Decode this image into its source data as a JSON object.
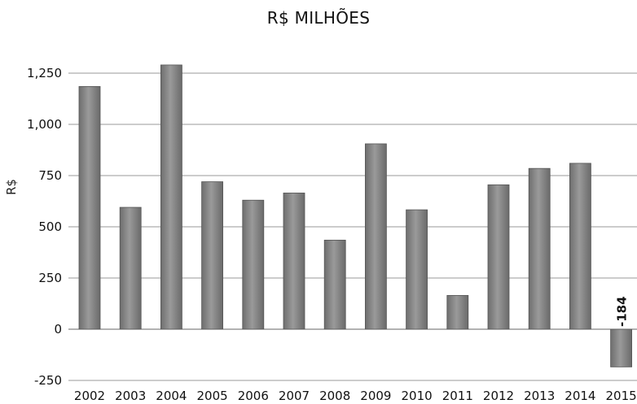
{
  "chart_data": {
    "type": "bar",
    "title": "R$ MILHÕES",
    "xlabel": "",
    "ylabel": "R$",
    "ylim": [
      -250,
      1250
    ],
    "yticks": [
      -250,
      0,
      250,
      500,
      750,
      "1,000",
      "1,250"
    ],
    "ytick_labels": [
      "-250",
      "0",
      "250",
      "500",
      "750",
      "1,000",
      "1,250"
    ],
    "grid": true,
    "bar_color": "#8c8c8c",
    "categories": [
      "2002",
      "2003",
      "2004",
      "2005",
      "2006",
      "2007",
      "2008",
      "2009",
      "2010",
      "2011",
      "2012",
      "2013",
      "2014",
      "2015"
    ],
    "values": [
      1185,
      595,
      1290,
      720,
      630,
      665,
      435,
      905,
      583,
      165,
      705,
      785,
      810,
      -184
    ],
    "data_labels": [
      {
        "category": "2015",
        "text": "-184"
      }
    ]
  }
}
